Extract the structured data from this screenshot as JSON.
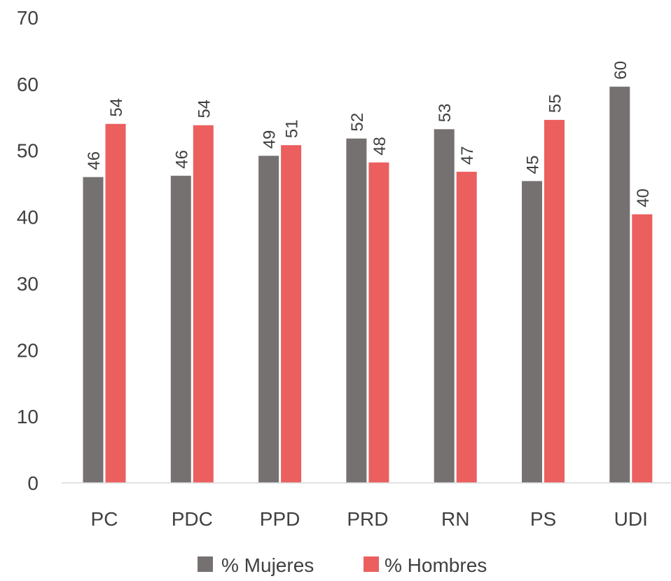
{
  "chart_data": {
    "type": "bar",
    "title": "",
    "xlabel": "",
    "ylabel": "",
    "categories": [
      "PC",
      "PDC",
      "PPD",
      "PRD",
      "RN",
      "PS",
      "UDI"
    ],
    "series": [
      {
        "name": "% Mujeres",
        "color": "#767171",
        "values": [
          46,
          46.2,
          49.2,
          51.8,
          53.2,
          45.4,
          59.6
        ],
        "labels": [
          "46",
          "46",
          "49",
          "52",
          "53",
          "45",
          "60"
        ]
      },
      {
        "name": "% Hombres",
        "color": "#EB5F5F",
        "values": [
          54,
          53.8,
          50.8,
          48.2,
          46.8,
          54.6,
          40.4
        ],
        "labels": [
          "54",
          "54",
          "51",
          "48",
          "47",
          "55",
          "40"
        ]
      }
    ],
    "ylim": [
      0,
      70
    ],
    "yticks": [
      0,
      10,
      20,
      30,
      40,
      50,
      60,
      70
    ],
    "grid": false,
    "legend_position": "bottom"
  }
}
